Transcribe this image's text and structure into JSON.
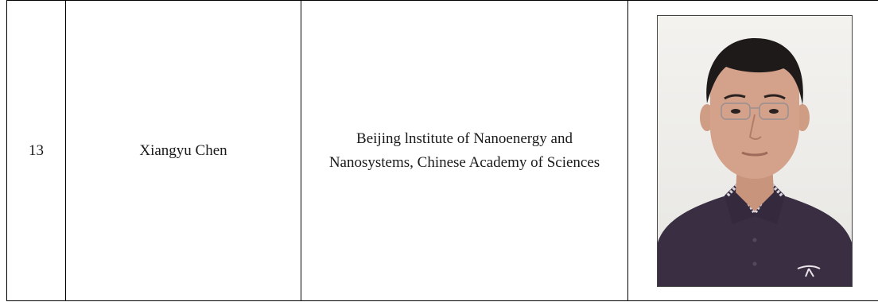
{
  "row": {
    "number": "13",
    "name": "Xiangyu Chen",
    "affiliation": "Beijing lnstitute of Nanoenergy and Nanosystems, Chinese Academy of Sciences"
  },
  "photo": {
    "shirt_color": "#3a2f42",
    "skin_color": "#d4a28a",
    "hair_color": "#1e1a1a",
    "background_color": "#f0efec"
  }
}
